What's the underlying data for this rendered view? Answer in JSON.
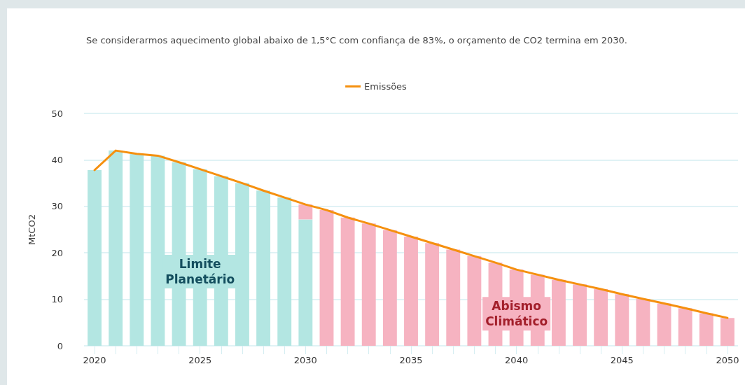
{
  "chart_data": {
    "type": "bar",
    "title": "Se considerarmos aquecimento global abaixo de 1,5°C com confiança de 83%, o orçamento de CO2 termina em 2030.",
    "ylabel": "MtCO2",
    "categories": [
      "2020",
      null,
      null,
      null,
      null,
      "2025",
      null,
      null,
      null,
      null,
      "2030",
      null,
      null,
      null,
      null,
      "2035",
      null,
      null,
      null,
      null,
      "2040",
      null,
      null,
      null,
      null,
      "2045",
      null,
      null,
      null,
      null,
      "2050"
    ],
    "stacked": true,
    "series": [
      {
        "name": "Limite Planetário",
        "color": "#b3e6e2",
        "values": [
          37.8,
          42.0,
          41.3,
          40.9,
          39.5,
          38.0,
          36.5,
          35.0,
          33.4,
          31.9,
          27.2,
          null,
          null,
          null,
          null,
          null,
          null,
          null,
          null,
          null,
          null,
          null,
          null,
          null,
          null,
          null,
          null,
          null,
          null,
          null,
          null
        ]
      },
      {
        "name": "Abismo Climático",
        "color": "#f6b3c1",
        "values": [
          null,
          null,
          null,
          null,
          null,
          null,
          null,
          null,
          null,
          null,
          3.2,
          29.2,
          27.6,
          26.3,
          24.9,
          23.5,
          22.1,
          20.7,
          19.3,
          17.9,
          16.4,
          15.3,
          14.2,
          13.2,
          12.2,
          11.1,
          10.1,
          9.1,
          8.1,
          7.0,
          6.0
        ]
      },
      {
        "name": "Emissões",
        "type": "line",
        "color": "#f5900f",
        "values": [
          37.8,
          42.0,
          41.3,
          40.9,
          39.5,
          38.0,
          36.5,
          35.0,
          33.4,
          31.9,
          30.4,
          29.2,
          27.6,
          26.3,
          24.9,
          23.5,
          22.1,
          20.7,
          19.3,
          17.9,
          16.4,
          15.3,
          14.2,
          13.2,
          12.2,
          11.1,
          10.1,
          9.1,
          8.1,
          7.0,
          6.0
        ]
      }
    ],
    "ylim": [
      0,
      50
    ],
    "yticks": [
      0,
      10,
      20,
      30,
      40,
      50
    ],
    "grid": "y",
    "legend": "top",
    "marker": "none",
    "line_style": "solid"
  }
}
